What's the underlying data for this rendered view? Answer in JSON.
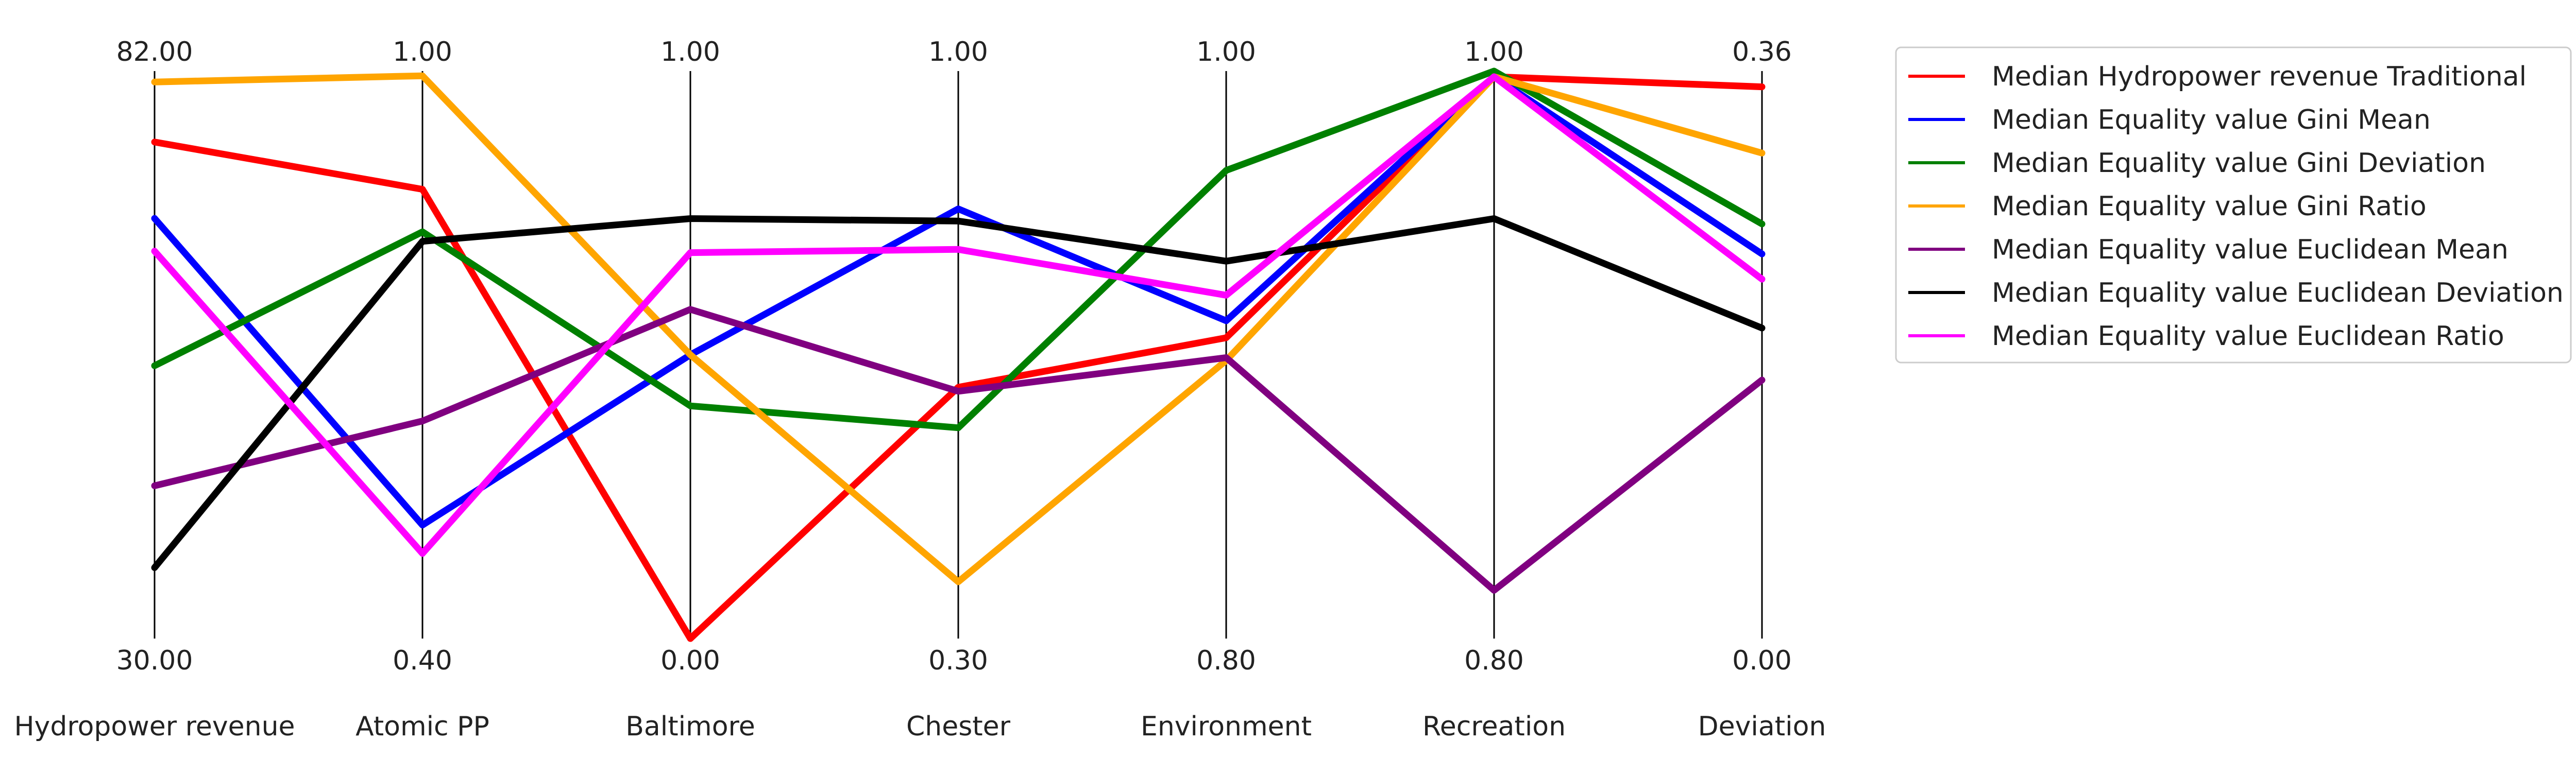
{
  "chart_data": {
    "type": "parallel-coordinates",
    "axes": [
      {
        "name": "Hydropower revenue",
        "max_label": "82.00",
        "min_label": "30.00",
        "max": 82.0,
        "min": 30.0
      },
      {
        "name": "Atomic PP",
        "max_label": "1.00",
        "min_label": "0.40",
        "max": 1.0,
        "min": 0.4
      },
      {
        "name": "Baltimore",
        "max_label": "1.00",
        "min_label": "0.00",
        "max": 1.0,
        "min": 0.0
      },
      {
        "name": "Chester",
        "max_label": "1.00",
        "min_label": "0.30",
        "max": 1.0,
        "min": 0.3
      },
      {
        "name": "Environment",
        "max_label": "1.00",
        "min_label": "0.80",
        "max": 1.0,
        "min": 0.8
      },
      {
        "name": "Recreation",
        "max_label": "1.00",
        "min_label": "0.80",
        "max": 1.0,
        "min": 0.8
      },
      {
        "name": "Deviation",
        "max_label": "0.36",
        "min_label": "0.00",
        "max": 0.36,
        "min": 0.0
      }
    ],
    "series": [
      {
        "name": "Median Hydropower revenue Traditional",
        "color": "#ff0000",
        "values": [
          75.5,
          0.875,
          0.0,
          0.61,
          0.906,
          0.998,
          0.35
        ]
      },
      {
        "name": "Median Equality value Gini Mean",
        "color": "#0000ff",
        "values": [
          68.5,
          0.52,
          0.5,
          0.83,
          0.912,
          0.998,
          0.244
        ]
      },
      {
        "name": "Median Equality value Gini Deviation",
        "color": "#008000",
        "values": [
          55.0,
          0.83,
          0.41,
          0.56,
          0.965,
          1.0,
          0.263
        ]
      },
      {
        "name": "Median Equality value Gini Ratio",
        "color": "#ffa500",
        "values": [
          81.0,
          0.995,
          0.5,
          0.37,
          0.898,
          0.998,
          0.308
        ]
      },
      {
        "name": "Median Equality value Euclidean Mean",
        "color": "#800080",
        "values": [
          44.0,
          0.63,
          0.58,
          0.605,
          0.899,
          0.817,
          0.164
        ]
      },
      {
        "name": "Median Equality value Euclidean Deviation",
        "color": "#000000",
        "values": [
          36.5,
          0.82,
          0.74,
          0.815,
          0.933,
          0.948,
          0.197
        ]
      },
      {
        "name": "Median Equality value Euclidean Ratio",
        "color": "#ff00ff",
        "values": [
          65.5,
          0.49,
          0.68,
          0.78,
          0.921,
          0.998,
          0.228
        ]
      }
    ],
    "legend": "top-right outside",
    "grid": false
  }
}
